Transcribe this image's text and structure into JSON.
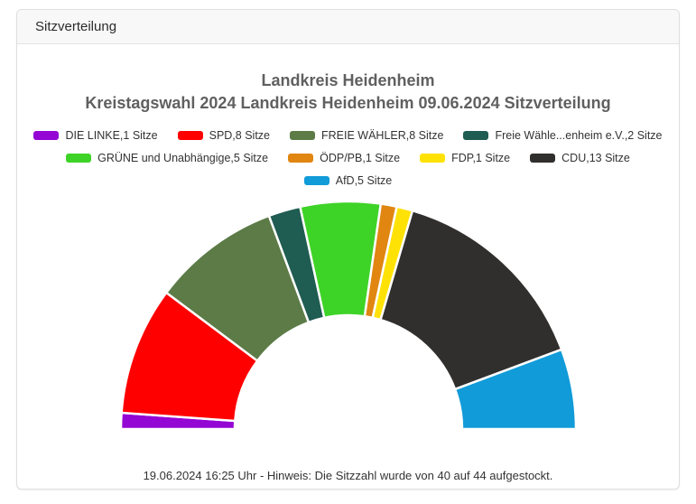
{
  "card": {
    "header": "Sitzverteilung"
  },
  "chart_data": {
    "type": "pie",
    "shape": "half-donut",
    "title_line1": "Landkreis Heidenheim",
    "title_line2": "Kreistagswahl 2024 Landkreis Heidenheim 09.06.2024 Sitzverteilung",
    "total_seats": 44,
    "start_angle_deg": 180,
    "end_angle_deg": 0,
    "inner_radius_ratio": 0.5,
    "legend_position": "top-center",
    "legend_rows": [
      4,
      4,
      1
    ],
    "series": [
      {
        "name": "DIE LINKE",
        "seats": 1,
        "color": "#9406d4",
        "legend_label": "DIE LINKE,1 Sitze"
      },
      {
        "name": "SPD",
        "seats": 8,
        "color": "#ff0000",
        "legend_label": "SPD,8 Sitze"
      },
      {
        "name": "FREIE WÄHLER",
        "seats": 8,
        "color": "#5c7b47",
        "legend_label": "FREIE WÄHLER,8 Sitze"
      },
      {
        "name": "Freie Wähle...enheim e.V.",
        "seats": 2,
        "color": "#1f5c52",
        "legend_label": "Freie Wähle...enheim e.V.,2 Sitze"
      },
      {
        "name": "GRÜNE und Unabhängige",
        "seats": 5,
        "color": "#3ed327",
        "legend_label": "GRÜNE und Unabhängige,5 Sitze"
      },
      {
        "name": "ÖDP/PB",
        "seats": 1,
        "color": "#e08611",
        "legend_label": "ÖDP/PB,1 Sitze"
      },
      {
        "name": "FDP",
        "seats": 1,
        "color": "#ffe205",
        "legend_label": "FDP,1 Sitze"
      },
      {
        "name": "CDU",
        "seats": 13,
        "color": "#302f2d",
        "legend_label": "CDU,13 Sitze"
      },
      {
        "name": "AfD",
        "seats": 5,
        "color": "#119bd8",
        "legend_label": "AfD,5 Sitze"
      }
    ]
  },
  "footer": {
    "note": "19.06.2024 16:25 Uhr - Hinweis: Die Sitzzahl wurde von 40 auf 44 aufgestockt."
  }
}
